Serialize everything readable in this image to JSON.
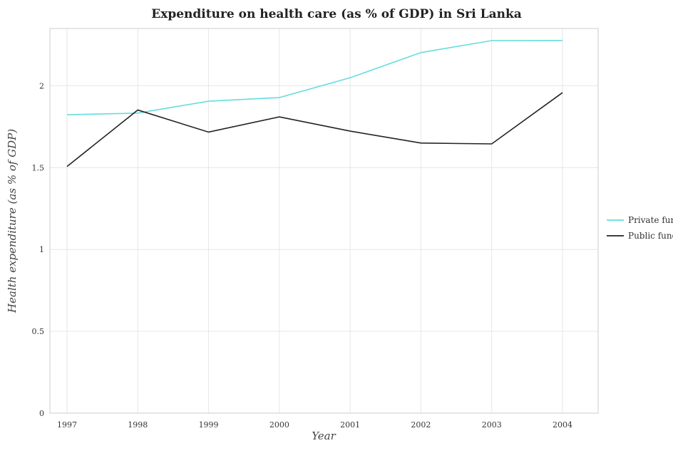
{
  "chart_data": {
    "type": "line",
    "title": "Expenditure on health care (as % of GDP) in Sri Lanka",
    "xlabel": "Year",
    "ylabel": "Health expenditure (as % of GDP)",
    "x": [
      "1997",
      "1998",
      "1999",
      "2000",
      "2001",
      "2002",
      "2003",
      "2004"
    ],
    "y_ticks": [
      "0",
      "0.5",
      "1",
      "1.5",
      "2"
    ],
    "ylim": [
      0,
      2.35
    ],
    "grid": true,
    "legend_position": "right",
    "series": [
      {
        "name": "Private funds",
        "color": "#66dddd",
        "values": [
          1.823,
          1.833,
          1.906,
          1.928,
          2.049,
          2.203,
          2.276,
          2.277
        ]
      },
      {
        "name": "Public funds",
        "color": "#222222",
        "values": [
          1.507,
          1.852,
          1.717,
          1.81,
          1.723,
          1.65,
          1.645,
          1.958
        ]
      }
    ]
  }
}
